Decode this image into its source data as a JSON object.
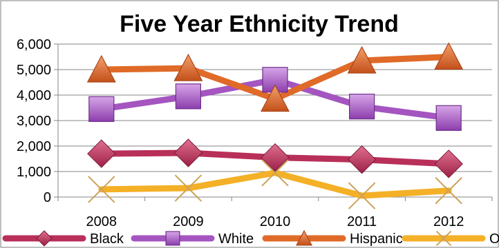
{
  "chart_data": {
    "type": "line",
    "title": "Five Year Ethnicity Trend",
    "xlabel": "",
    "ylabel": "",
    "categories": [
      "2008",
      "2009",
      "2010",
      "2011",
      "2012"
    ],
    "ylim": [
      0,
      6000
    ],
    "yticks": [
      0,
      1000,
      2000,
      3000,
      4000,
      5000,
      6000
    ],
    "ytick_labels": [
      "0",
      "1,000",
      "2,000",
      "3,000",
      "4,000",
      "5,000",
      "6,000"
    ],
    "grid": "horizontal",
    "legend_position": "bottom",
    "series": [
      {
        "name": "Black",
        "color": "#b8305a",
        "marker": "diamond",
        "values": [
          1700,
          1730,
          1550,
          1470,
          1300
        ]
      },
      {
        "name": "White",
        "color": "#a455c0",
        "marker": "square",
        "values": [
          3450,
          3950,
          4600,
          3550,
          3100
        ]
      },
      {
        "name": "Hispanic",
        "color": "#e06a28",
        "marker": "triangle",
        "values": [
          5000,
          5050,
          3850,
          5350,
          5500
        ]
      },
      {
        "name": "Other",
        "color": "#f4b026",
        "marker": "x",
        "values": [
          300,
          350,
          950,
          50,
          250
        ]
      }
    ]
  }
}
